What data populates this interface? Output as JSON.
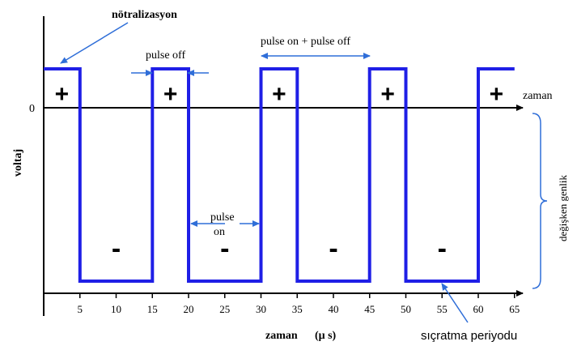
{
  "annotations": {
    "neutralization": "nötralizasyon",
    "pulse_off": "pulse off",
    "pulse_on_plus_off": "pulse on + pulse off",
    "pulse_on_line1": "pulse",
    "pulse_on_line2": "on",
    "variable_amplitude": "değişken genlik",
    "sputter_period": "sıçratma periyodu"
  },
  "axes": {
    "x_label": "zaman",
    "x_label_bottom": "zaman",
    "x_unit": "(μ s)",
    "y_label": "voltaj",
    "zero_label": "0"
  },
  "signs": {
    "plus": "+",
    "minus": "-"
  },
  "chart_data": {
    "type": "line",
    "x_ticks": [
      5,
      10,
      15,
      20,
      25,
      30,
      35,
      40,
      45,
      50,
      55,
      60,
      65
    ],
    "xlabel": "zaman (μ s)",
    "ylabel": "voltaj",
    "series": [
      {
        "x": [
          0,
          5,
          5,
          15,
          15,
          20,
          20,
          30,
          30,
          35,
          35,
          45,
          45,
          50,
          50,
          60,
          60,
          65
        ],
        "y": [
          1,
          1,
          -4,
          -4,
          1,
          1,
          -4,
          -4,
          1,
          1,
          -4,
          -4,
          1,
          1,
          -4,
          -4,
          1,
          1
        ]
      }
    ],
    "plus_positions": [
      2.5,
      17.5,
      32.5,
      47.5,
      62.5
    ],
    "minus_positions": [
      10,
      25,
      40,
      55
    ]
  },
  "colors": {
    "waveform": "#1f1fe6",
    "annotation": "#2f6ed8",
    "axis": "#000000"
  }
}
